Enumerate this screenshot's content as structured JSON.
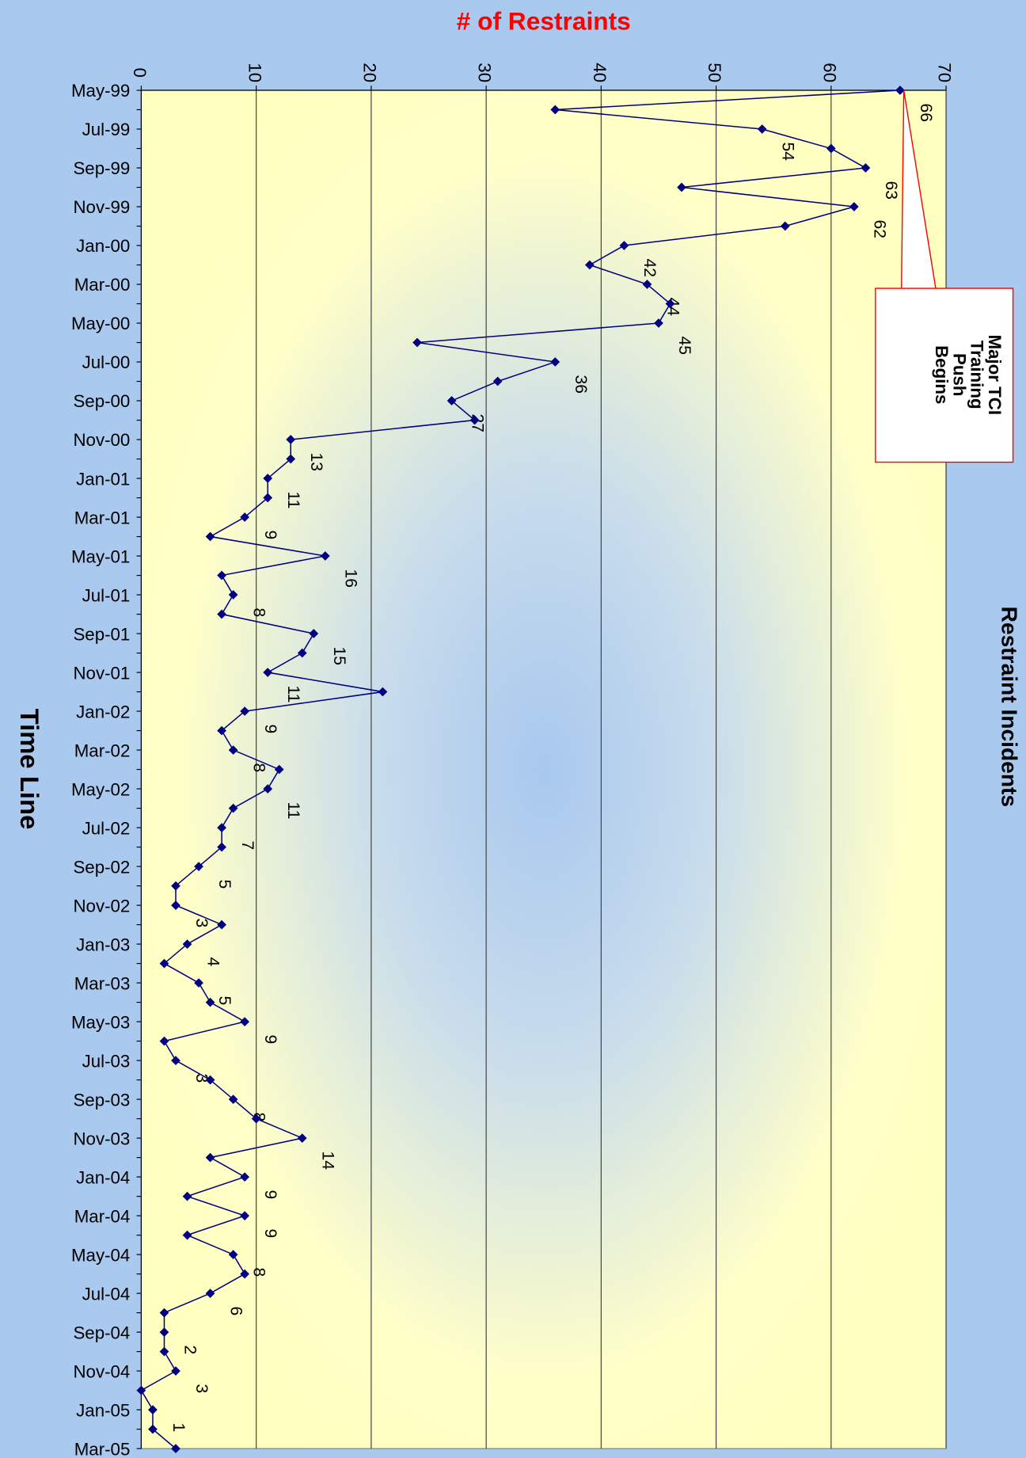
{
  "chart_data": {
    "type": "line",
    "title": "Restraint Incidents",
    "x_label": "Time Line",
    "y_label": "# of Restraints",
    "categories": [
      "May-99",
      null,
      "Jul-99",
      null,
      "Sep-99",
      null,
      "Nov-99",
      null,
      "Jan-00",
      null,
      "Mar-00",
      null,
      "May-00",
      null,
      "Jul-00",
      null,
      "Sep-00",
      null,
      "Nov-00",
      null,
      "Jan-01",
      null,
      "Mar-01",
      null,
      "May-01",
      null,
      "Jul-01",
      null,
      "Sep-01",
      null,
      "Nov-01",
      null,
      "Jan-02",
      null,
      "Mar-02",
      null,
      "May-02",
      null,
      "Jul-02",
      null,
      "Sep-02",
      null,
      "Nov-02",
      null,
      "Jan-03",
      null,
      "Mar-03",
      null,
      "May-03",
      null,
      "Jul-03",
      null,
      "Sep-03",
      null,
      "Nov-03",
      null,
      "Jan-04",
      null,
      "Mar-04",
      null,
      "May-04",
      null,
      "Jul-04",
      null,
      "Sep-04",
      null,
      "Nov-04",
      null,
      "Jan-05",
      null,
      "Mar-05"
    ],
    "values": [
      66,
      36,
      54,
      60,
      63,
      47,
      62,
      56,
      42,
      39,
      44,
      46,
      45,
      24,
      36,
      31,
      27,
      29,
      13,
      13,
      11,
      11,
      9,
      6,
      16,
      7,
      8,
      7,
      15,
      14,
      11,
      21,
      9,
      7,
      8,
      12,
      11,
      8,
      7,
      7,
      5,
      3,
      3,
      7,
      4,
      2,
      5,
      6,
      9,
      2,
      3,
      6,
      8,
      10,
      14,
      6,
      9,
      4,
      9,
      4,
      8,
      9,
      6,
      2,
      2,
      2,
      3,
      0,
      1,
      1,
      3
    ],
    "value_labels": [
      "66",
      null,
      "54",
      null,
      "63",
      null,
      "62",
      null,
      "42",
      null,
      "44",
      null,
      "45",
      null,
      "36",
      null,
      "27",
      null,
      "13",
      null,
      "11",
      null,
      "9",
      null,
      "16",
      null,
      "8",
      null,
      "15",
      null,
      "11",
      null,
      "9",
      null,
      "8",
      null,
      "11",
      null,
      "7",
      null,
      "5",
      null,
      "3",
      null,
      "4",
      null,
      "5",
      null,
      "9",
      null,
      "3",
      null,
      "8",
      null,
      "14",
      null,
      "9",
      null,
      "9",
      null,
      "8",
      null,
      "6",
      null,
      "2",
      null,
      "3",
      null,
      "1",
      null,
      "3"
    ],
    "color": "#000080",
    "ylim": [
      0,
      70
    ],
    "yticks": [
      0,
      10,
      20,
      30,
      40,
      50,
      60,
      70
    ],
    "grid": true,
    "annotation": {
      "lines": [
        "Major TCI",
        "Training",
        "Push",
        "Begins"
      ],
      "category_index": 0
    }
  }
}
